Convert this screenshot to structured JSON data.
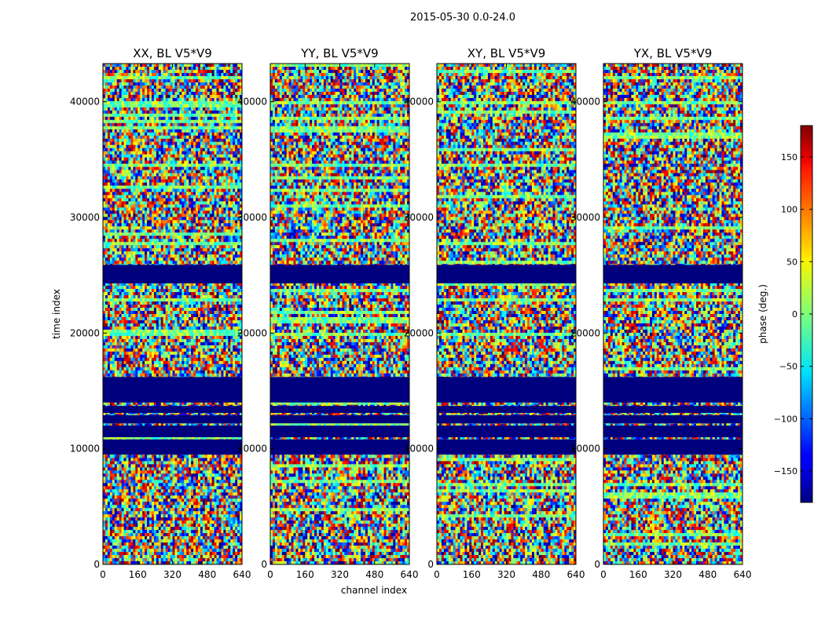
{
  "chart_data": {
    "type": "heatmap",
    "suptitle": "2015-05-30 0.0-24.0",
    "xlabel": "channel index",
    "ylabel": "time index",
    "xlim": [
      0,
      640
    ],
    "ylim": [
      0,
      43300
    ],
    "xticks": [
      0,
      160,
      320,
      480,
      640
    ],
    "yticks": [
      0,
      10000,
      20000,
      30000,
      40000
    ],
    "panels": [
      {
        "title": "XX, BL V5*V9",
        "pol": "XX"
      },
      {
        "title": "YY, BL V5*V9",
        "pol": "YY"
      },
      {
        "title": "XY, BL V5*V9",
        "pol": "XY"
      },
      {
        "title": "YX, BL V5*V9",
        "pol": "YX"
      }
    ],
    "colorbar": {
      "label": "phase (deg.)",
      "range": [
        -180,
        180
      ],
      "ticks": [
        -150,
        -100,
        -50,
        0,
        50,
        100,
        150
      ],
      "colormap": "jet"
    },
    "flagged_rows": [
      [
        9500,
        10800
      ],
      [
        11000,
        12000
      ],
      [
        12200,
        12900
      ],
      [
        13100,
        13700
      ],
      [
        14000,
        16200
      ],
      [
        24300,
        25900
      ]
    ],
    "colors": {
      "flagged": "#00007f",
      "frame": "#000000"
    }
  }
}
